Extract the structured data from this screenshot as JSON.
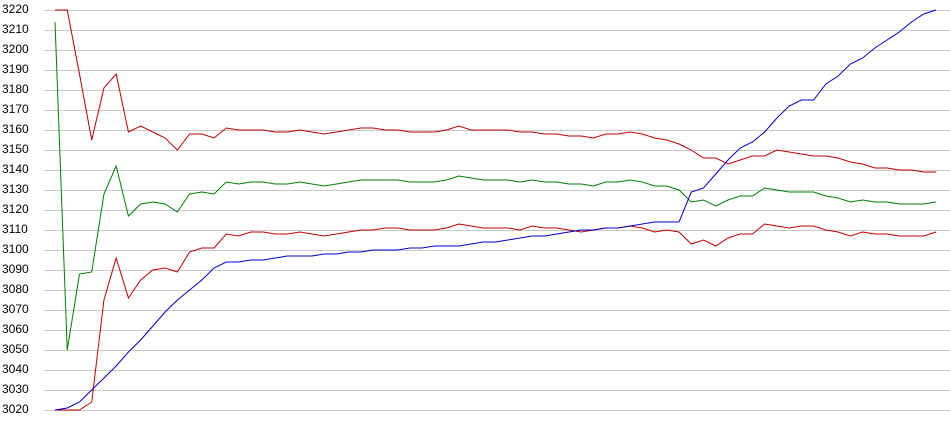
{
  "chart_data": {
    "type": "line",
    "ylim": [
      3020,
      3220
    ],
    "yticks": [
      3020,
      3030,
      3040,
      3050,
      3060,
      3070,
      3080,
      3090,
      3100,
      3110,
      3120,
      3130,
      3140,
      3150,
      3160,
      3170,
      3180,
      3190,
      3200,
      3210,
      3220
    ],
    "grid": true,
    "series": [
      {
        "color": "#c00000",
        "values": [
          3220,
          3220,
          3188,
          3155,
          3181,
          3188,
          3159,
          3162,
          3159,
          3156,
          3150,
          3158,
          3158,
          3156,
          3161,
          3160,
          3160,
          3160,
          3159,
          3159,
          3160,
          3159,
          3158,
          3159,
          3160,
          3161,
          3161,
          3160,
          3160,
          3159,
          3159,
          3159,
          3160,
          3162,
          3160,
          3160,
          3160,
          3160,
          3159,
          3159,
          3158,
          3158,
          3157,
          3157,
          3156,
          3158,
          3158,
          3159,
          3158,
          3156,
          3155,
          3153,
          3150,
          3146,
          3146,
          3143,
          3145,
          3147,
          3147,
          3150,
          3149,
          3148,
          3147,
          3147,
          3146,
          3144,
          3143,
          3141,
          3141,
          3140,
          3140,
          3139,
          3139
        ]
      },
      {
        "color": "#008000",
        "values": [
          3214,
          3050,
          3088,
          3089,
          3128,
          3142,
          3117,
          3123,
          3124,
          3123,
          3119,
          3128,
          3129,
          3128,
          3134,
          3133,
          3134,
          3134,
          3133,
          3133,
          3134,
          3133,
          3132,
          3133,
          3134,
          3135,
          3135,
          3135,
          3135,
          3134,
          3134,
          3134,
          3135,
          3137,
          3136,
          3135,
          3135,
          3135,
          3134,
          3135,
          3134,
          3134,
          3133,
          3133,
          3132,
          3134,
          3134,
          3135,
          3134,
          3132,
          3132,
          3130,
          3124,
          3125,
          3122,
          3125,
          3127,
          3127,
          3131,
          3130,
          3129,
          3129,
          3129,
          3127,
          3126,
          3124,
          3125,
          3124,
          3124,
          3123,
          3123,
          3123,
          3124
        ]
      },
      {
        "color": "#c00000",
        "values": [
          3020,
          3020,
          3020,
          3024,
          3075,
          3096,
          3076,
          3085,
          3090,
          3091,
          3089,
          3099,
          3101,
          3101,
          3108,
          3107,
          3109,
          3109,
          3108,
          3108,
          3109,
          3108,
          3107,
          3108,
          3109,
          3110,
          3110,
          3111,
          3111,
          3110,
          3110,
          3110,
          3111,
          3113,
          3112,
          3111,
          3111,
          3111,
          3110,
          3112,
          3111,
          3111,
          3110,
          3109,
          3110,
          3111,
          3111,
          3112,
          3111,
          3109,
          3110,
          3109,
          3103,
          3105,
          3102,
          3106,
          3108,
          3108,
          3113,
          3112,
          3111,
          3112,
          3112,
          3110,
          3109,
          3107,
          3109,
          3108,
          3108,
          3107,
          3107,
          3107,
          3109
        ]
      },
      {
        "color": "#0000cc",
        "values": [
          3020,
          3021,
          3024,
          3030,
          3036,
          3042,
          3049,
          3055,
          3062,
          3069,
          3075,
          3080,
          3085,
          3091,
          3094,
          3094,
          3095,
          3095,
          3096,
          3097,
          3097,
          3097,
          3098,
          3098,
          3099,
          3099,
          3100,
          3100,
          3100,
          3101,
          3101,
          3102,
          3102,
          3102,
          3103,
          3104,
          3104,
          3105,
          3106,
          3107,
          3107,
          3108,
          3109,
          3110,
          3110,
          3111,
          3111,
          3112,
          3113,
          3114,
          3114,
          3114,
          3129,
          3131,
          3138,
          3145,
          3151,
          3154,
          3159,
          3166,
          3172,
          3175,
          3175,
          3183,
          3187,
          3193,
          3196,
          3201,
          3205,
          3209,
          3214,
          3218,
          3220
        ]
      }
    ]
  }
}
